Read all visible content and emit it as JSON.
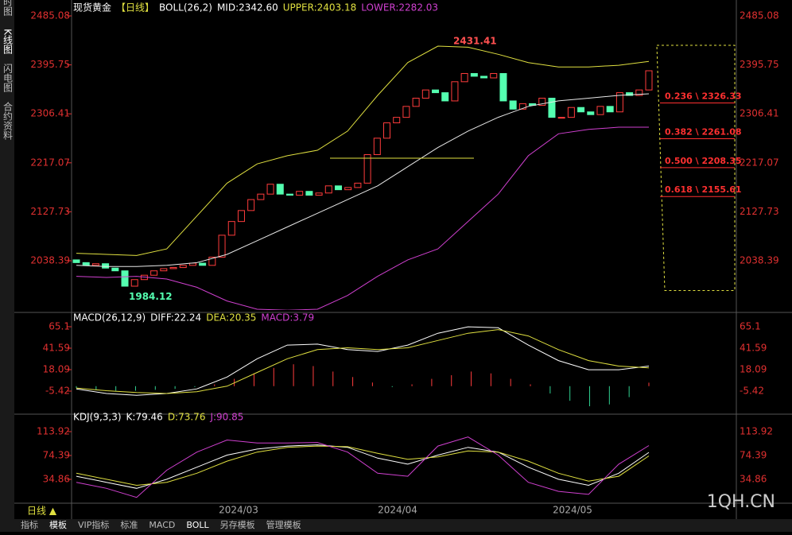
{
  "sidebar": [
    "分时图",
    "K线图",
    "闪电图",
    "合约资料"
  ],
  "chart_data": [
    {
      "type": "candlestick",
      "title": "现货黄金",
      "period": "【日线】",
      "indicator": "BOLL(26,2)",
      "stats": [
        "MID:2342.60",
        "UPPER:2403.18",
        "LOWER:2282.03"
      ],
      "ylim": [
        1948.5,
        2502.5
      ],
      "yticks": [
        2485.08,
        2395.75,
        2306.41,
        2217.07,
        2127.73,
        2038.39
      ],
      "open": [
        2040,
        2035,
        2030,
        2033,
        2025,
        2020,
        1992,
        2004,
        2012,
        2020,
        2024,
        2026,
        2030,
        2034,
        2030,
        2045,
        2085,
        2110,
        2130,
        2150,
        2160,
        2178,
        2160,
        2158,
        2165,
        2158,
        2162,
        2175,
        2168,
        2172,
        2180,
        2232,
        2262,
        2290,
        2300,
        2320,
        2335,
        2350,
        2345,
        2330,
        2365,
        2380,
        2375,
        2372,
        2380,
        2330,
        2315,
        2325,
        2322,
        2335,
        2300,
        2300,
        2318,
        2310,
        2305,
        2320,
        2310,
        2345,
        2340,
        2350
      ],
      "close": [
        2035,
        2030,
        2033,
        2025,
        2020,
        1992,
        2004,
        2012,
        2020,
        2024,
        2026,
        2030,
        2034,
        2030,
        2045,
        2085,
        2110,
        2130,
        2150,
        2160,
        2178,
        2160,
        2158,
        2165,
        2158,
        2162,
        2175,
        2168,
        2172,
        2180,
        2232,
        2262,
        2290,
        2300,
        2320,
        2335,
        2350,
        2345,
        2330,
        2365,
        2380,
        2375,
        2372,
        2380,
        2330,
        2315,
        2325,
        2322,
        2335,
        2300,
        2300,
        2318,
        2310,
        2305,
        2320,
        2310,
        2345,
        2340,
        2350,
        2385
      ],
      "up_color": "#ff3c3c",
      "down_color": "#54ffb0",
      "series": [
        {
          "name": "UPPER",
          "color": "#e0e040",
          "values": [
            2052,
            2050,
            2048,
            2060,
            2120,
            2180,
            2215,
            2230,
            2240,
            2275,
            2340,
            2400,
            2430,
            2428,
            2415,
            2400,
            2392,
            2392,
            2395,
            2402
          ]
        },
        {
          "name": "MID",
          "color": "#e8e8e8",
          "values": [
            2030,
            2028,
            2028,
            2030,
            2035,
            2050,
            2075,
            2100,
            2125,
            2150,
            2175,
            2210,
            2245,
            2275,
            2300,
            2320,
            2330,
            2335,
            2340,
            2343
          ]
        },
        {
          "name": "LOWER",
          "color": "#d040d0",
          "values": [
            2010,
            2008,
            2010,
            2005,
            1990,
            1965,
            1950,
            1948,
            1950,
            1975,
            2010,
            2040,
            2060,
            2110,
            2160,
            2230,
            2270,
            2278,
            2282,
            2282
          ]
        }
      ],
      "high": {
        "value": 2431.41,
        "label": "2431.41"
      },
      "low": {
        "value": 1984.12,
        "label": "1984.12"
      },
      "fib": [
        {
          "value": 2326.33,
          "label": "0.236 \\ 2326.33"
        },
        {
          "value": 2261.08,
          "label": "0.382 \\ 2261.08"
        },
        {
          "value": 2208.35,
          "label": "0.500 \\ 2208.35"
        },
        {
          "value": 2155.61,
          "label": "0.618 \\ 2155.61"
        }
      ],
      "x_labels": [
        "2024/03",
        "2024/04",
        "2024/05"
      ]
    },
    {
      "type": "macd",
      "title": "MACD(26,12,9)",
      "stats": [
        "DIFF:22.24",
        "DEA:20.35",
        "MACD:3.79"
      ],
      "ylim": [
        -29.8,
        74.68
      ],
      "yticks": [
        65.1,
        41.59,
        18.09,
        -5.42
      ],
      "series": [
        {
          "name": "DIFF",
          "color": "#ffffff",
          "values": [
            -3,
            -8,
            -10,
            -8,
            -3,
            10,
            30,
            45,
            46,
            40,
            38,
            45,
            58,
            65,
            64,
            45,
            28,
            18,
            18,
            22
          ]
        },
        {
          "name": "DEA",
          "color": "#e0e040",
          "values": [
            -2,
            -5,
            -7,
            -8,
            -6,
            0,
            15,
            30,
            40,
            42,
            40,
            42,
            50,
            58,
            62,
            55,
            40,
            28,
            22,
            20
          ]
        }
      ],
      "histogram": [
        -2,
        -4,
        -5,
        -5,
        -4,
        -3,
        -1,
        2,
        8,
        14,
        20,
        24,
        22,
        16,
        10,
        4,
        -1,
        2,
        8,
        12,
        16,
        14,
        8,
        2,
        -8,
        -16,
        -22,
        -20,
        -12,
        3.79
      ]
    },
    {
      "type": "kdj",
      "title": "KDJ(9,3,3)",
      "stats": [
        "K:79.46",
        "D:73.76",
        "J:90.85"
      ],
      "ylim": [
        -3.35,
        137.6
      ],
      "yticks": [
        113.92,
        74.39,
        34.86
      ],
      "series": [
        {
          "name": "K",
          "color": "#ffffff",
          "values": [
            40,
            30,
            20,
            35,
            55,
            75,
            85,
            90,
            92,
            88,
            70,
            60,
            75,
            88,
            80,
            55,
            35,
            25,
            45,
            79.46
          ]
        },
        {
          "name": "D",
          "color": "#e0e040",
          "values": [
            45,
            35,
            25,
            30,
            45,
            65,
            80,
            88,
            90,
            89,
            78,
            68,
            72,
            82,
            80,
            65,
            45,
            32,
            40,
            73.76
          ]
        },
        {
          "name": "J",
          "color": "#d040d0",
          "values": [
            30,
            20,
            5,
            50,
            80,
            100,
            95,
            95,
            96,
            80,
            45,
            40,
            90,
            105,
            75,
            30,
            15,
            10,
            60,
            90.85
          ]
        }
      ]
    }
  ],
  "footer": {
    "period": "日线 ▲",
    "tabs": [
      "指标",
      "模板",
      "VIP指标",
      "标准",
      "MACD",
      "BOLL",
      "另存模板",
      "管理模板"
    ],
    "watermark": "1QH.CN"
  }
}
